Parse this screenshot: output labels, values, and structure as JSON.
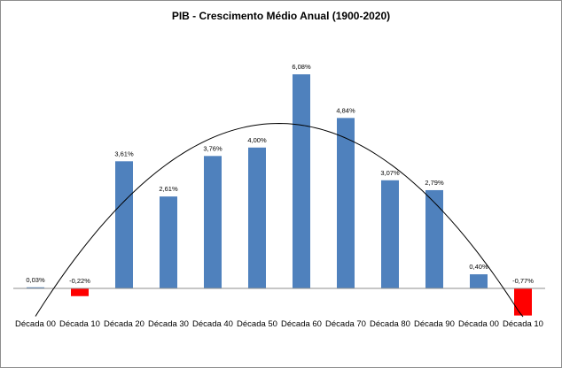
{
  "chart_data": {
    "type": "bar",
    "title": "PIB - Crescimento Médio Anual (1900-2020)",
    "categories": [
      "Década 00",
      "Década 10",
      "Década 20",
      "Década 30",
      "Década 40",
      "Década 50",
      "Década 60",
      "Década 70",
      "Década 80",
      "Década 90",
      "Década 00",
      "Década 10"
    ],
    "values": [
      0.03,
      -0.22,
      3.61,
      2.61,
      3.76,
      4.0,
      6.08,
      4.84,
      3.07,
      2.79,
      0.4,
      -0.77
    ],
    "data_labels": [
      "0,03%",
      "-0,22%",
      "3,61%",
      "2,61%",
      "3,76%",
      "4,00%",
      "6,08%",
      "4,84%",
      "3,07%",
      "2,79%",
      "0,40%",
      "-0,77%"
    ],
    "ylim": [
      -0.77,
      6.08
    ],
    "grid": false,
    "legend": "none",
    "colors": {
      "positive": "#4f81bd",
      "negative": "#ff0000",
      "trendline": "#000000",
      "axis": "#8e8e8e"
    },
    "trendline": "polynomial"
  }
}
